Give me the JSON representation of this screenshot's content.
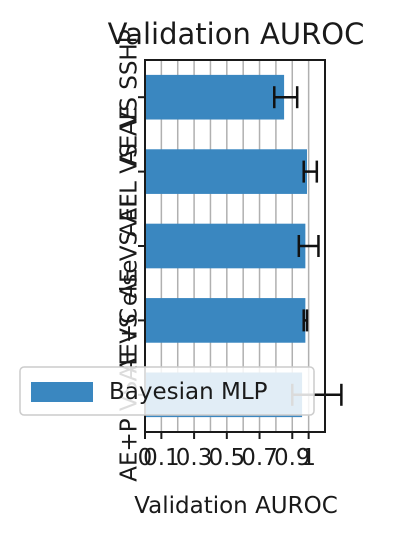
{
  "chart_data": {
    "type": "bar",
    "orientation": "horizontal",
    "title": "Validation AUROC",
    "xlabel": "Validation AUROC",
    "ylabel": "",
    "xlim": [
      0,
      1.1
    ],
    "xticks": [
      0,
      0.1,
      0.3,
      0.5,
      0.7,
      0.9,
      1
    ],
    "xtick_labels": [
      "0",
      "0.1",
      "0.3",
      "0.5",
      "0.7",
      "0.9",
      "1"
    ],
    "grid": "x",
    "legend_position": "lower-left",
    "categories": [
      "AE+P VS AE+C",
      "AE VS else",
      "AE VS AE",
      "AEFL VS AE",
      "AE VS SSHP"
    ],
    "series": [
      {
        "name": "Bayesian MLP",
        "color": "#3a87c0",
        "values": [
          0.96,
          0.98,
          0.98,
          0.99,
          0.85
        ],
        "errors": [
          0.15,
          0.01,
          0.06,
          0.04,
          0.07
        ],
        "error_x": [
          1.05,
          0.98,
          1.0,
          1.01,
          0.86
        ]
      }
    ]
  }
}
